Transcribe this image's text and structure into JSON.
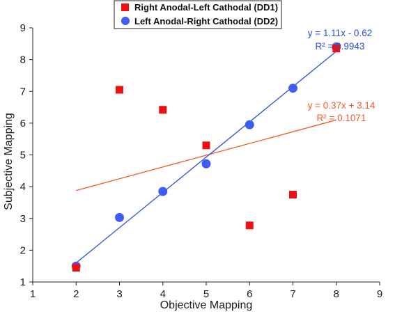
{
  "chart_data": {
    "type": "scatter",
    "xlabel": "Objective Mapping",
    "ylabel": "Subjective Mapping",
    "xlim": [
      1,
      9
    ],
    "ylim": [
      1,
      9
    ],
    "x_ticks": [
      "1",
      "2",
      "3",
      "4",
      "5",
      "6",
      "7",
      "8",
      "9"
    ],
    "y_ticks": [
      "1",
      "2",
      "3",
      "4",
      "5",
      "6",
      "7",
      "8",
      "9"
    ],
    "grid": false,
    "legend_position": "top-center",
    "series": [
      {
        "name": "Right Anodal-Left Cathodal (DD1)",
        "marker": "square",
        "color": "#ee1111",
        "points": [
          {
            "x": 2,
            "y": 1.45
          },
          {
            "x": 3,
            "y": 7.05
          },
          {
            "x": 4,
            "y": 6.42
          },
          {
            "x": 5,
            "y": 5.3
          },
          {
            "x": 6,
            "y": 2.78
          },
          {
            "x": 7,
            "y": 3.75
          },
          {
            "x": 8,
            "y": 8.35
          }
        ],
        "trendline": {
          "slope": 0.37,
          "intercept": 3.14,
          "x_range": [
            2,
            8
          ],
          "color": "#f05a28",
          "equation": "y = 0.37x + 3.14",
          "r2": "R² = 0.1071"
        }
      },
      {
        "name": "Left Anodal-Right Cathodal (DD2)",
        "marker": "circle",
        "color": "#3d5ef0",
        "points": [
          {
            "x": 2,
            "y": 1.5
          },
          {
            "x": 3,
            "y": 3.03
          },
          {
            "x": 4,
            "y": 3.85
          },
          {
            "x": 5,
            "y": 4.72
          },
          {
            "x": 6,
            "y": 5.95
          },
          {
            "x": 7,
            "y": 7.1
          },
          {
            "x": 8,
            "y": 8.4
          }
        ],
        "trendline": {
          "slope": 1.11,
          "intercept": -0.62,
          "x_range": [
            2,
            8
          ],
          "color": "#2b4fd9",
          "equation": "y = 1.11x - 0.62",
          "r2": "R² = 0.9943"
        }
      }
    ]
  }
}
